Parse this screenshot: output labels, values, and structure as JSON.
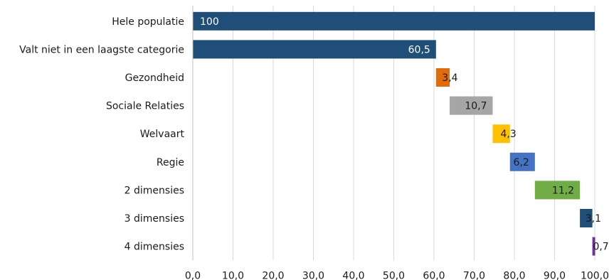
{
  "chart_data": {
    "type": "bar",
    "orientation": "horizontal",
    "stacked": "waterfall",
    "categories": [
      "Hele populatie",
      "Valt niet in een laagste categorie",
      "Gezondheid",
      "Sociale Relaties",
      "Welvaart",
      "Regie",
      "2 dimensies",
      "3 dimensies",
      "4 dimensies"
    ],
    "bars": [
      {
        "start": 0,
        "value": 100,
        "label": "100",
        "color": "#1f4e79",
        "label_color": "#ffffff",
        "label_pos": "inside-start"
      },
      {
        "start": 0,
        "value": 60.5,
        "label": "60,5",
        "color": "#1f4e79",
        "label_color": "#ffffff",
        "label_pos": "inside-end"
      },
      {
        "start": 60.5,
        "value": 3.4,
        "label": "3,4",
        "color": "#e36c0a",
        "label_color": "#1a1a1a",
        "label_pos": "inside-end"
      },
      {
        "start": 63.9,
        "value": 10.7,
        "label": "10,7",
        "color": "#a6a6a6",
        "label_color": "#1a1a1a",
        "label_pos": "inside-end"
      },
      {
        "start": 74.6,
        "value": 4.3,
        "label": "4,3",
        "color": "#ffc000",
        "label_color": "#1a1a1a",
        "label_pos": "inside-end"
      },
      {
        "start": 78.9,
        "value": 6.2,
        "label": "6,2",
        "color": "#4472c4",
        "label_color": "#1a1a1a",
        "label_pos": "inside-end"
      },
      {
        "start": 85.1,
        "value": 11.2,
        "label": "11,2",
        "color": "#70ad47",
        "label_color": "#1a1a1a",
        "label_pos": "inside-end"
      },
      {
        "start": 96.3,
        "value": 3.1,
        "label": "3,1",
        "color": "#1f4e79",
        "label_color": "#1a1a1a",
        "label_pos": "inside-end"
      },
      {
        "start": 99.4,
        "value": 0.7,
        "label": "0,7",
        "color": "#7030a0",
        "label_color": "#1a1a1a",
        "label_pos": "inside-end"
      }
    ],
    "xlim": [
      0,
      100
    ],
    "x_ticks": [
      0,
      10,
      20,
      30,
      40,
      50,
      60,
      70,
      80,
      90,
      100
    ],
    "x_tick_labels": [
      "0,0",
      "10,0",
      "20,0",
      "30,0",
      "40,0",
      "50,0",
      "60,0",
      "70,0",
      "80,0",
      "90,0",
      "100,0"
    ],
    "grid": true,
    "title": "",
    "xlabel": "",
    "ylabel": "",
    "legend": "none"
  }
}
